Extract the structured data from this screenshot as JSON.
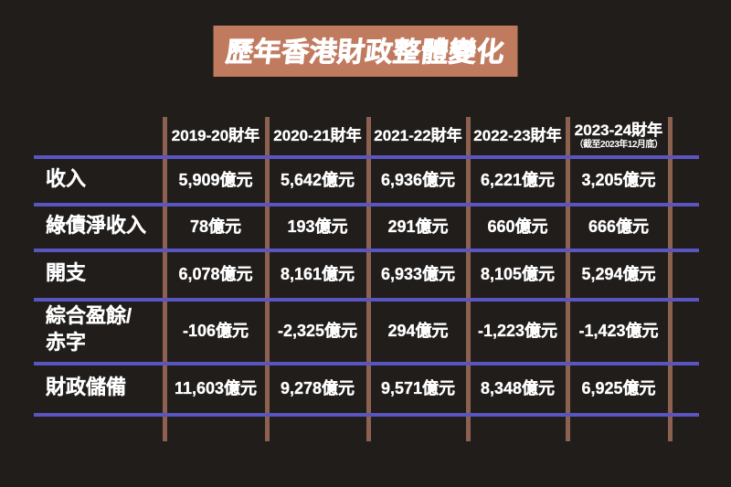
{
  "title": "歷年香港財政整體變化",
  "colors": {
    "background": "#201d1b",
    "banner": "#c07a5e",
    "h_line": "#5b55c2",
    "v_line": "#8d6150",
    "text": "#ffffff"
  },
  "chart_data": {
    "type": "table",
    "title": "歷年香港財政整體變化",
    "columns": [
      "2019-20財年",
      "2020-21財年",
      "2021-22財年",
      "2022-23財年",
      "2023-24財年"
    ],
    "column_note": "（截至2023年12月底）",
    "rows": [
      {
        "label": "收入",
        "values": [
          "5,909億元",
          "5,642億元",
          "6,936億元",
          "6,221億元",
          "3,205億元"
        ]
      },
      {
        "label": "綠債淨收入",
        "values": [
          "78億元",
          "193億元",
          "291億元",
          "660億元",
          "666億元"
        ]
      },
      {
        "label": "開支",
        "values": [
          "6,078億元",
          "8,161億元",
          "6,933億元",
          "8,105億元",
          "5,294億元"
        ]
      },
      {
        "label": "綜合盈餘/\n赤字",
        "values": [
          "-106億元",
          "-2,325億元",
          "294億元",
          "-1,223億元",
          "-1,423億元"
        ]
      },
      {
        "label": "財政儲備",
        "values": [
          "11,603億元",
          "9,278億元",
          "9,571億元",
          "8,348億元",
          "6,925億元"
        ]
      }
    ]
  }
}
